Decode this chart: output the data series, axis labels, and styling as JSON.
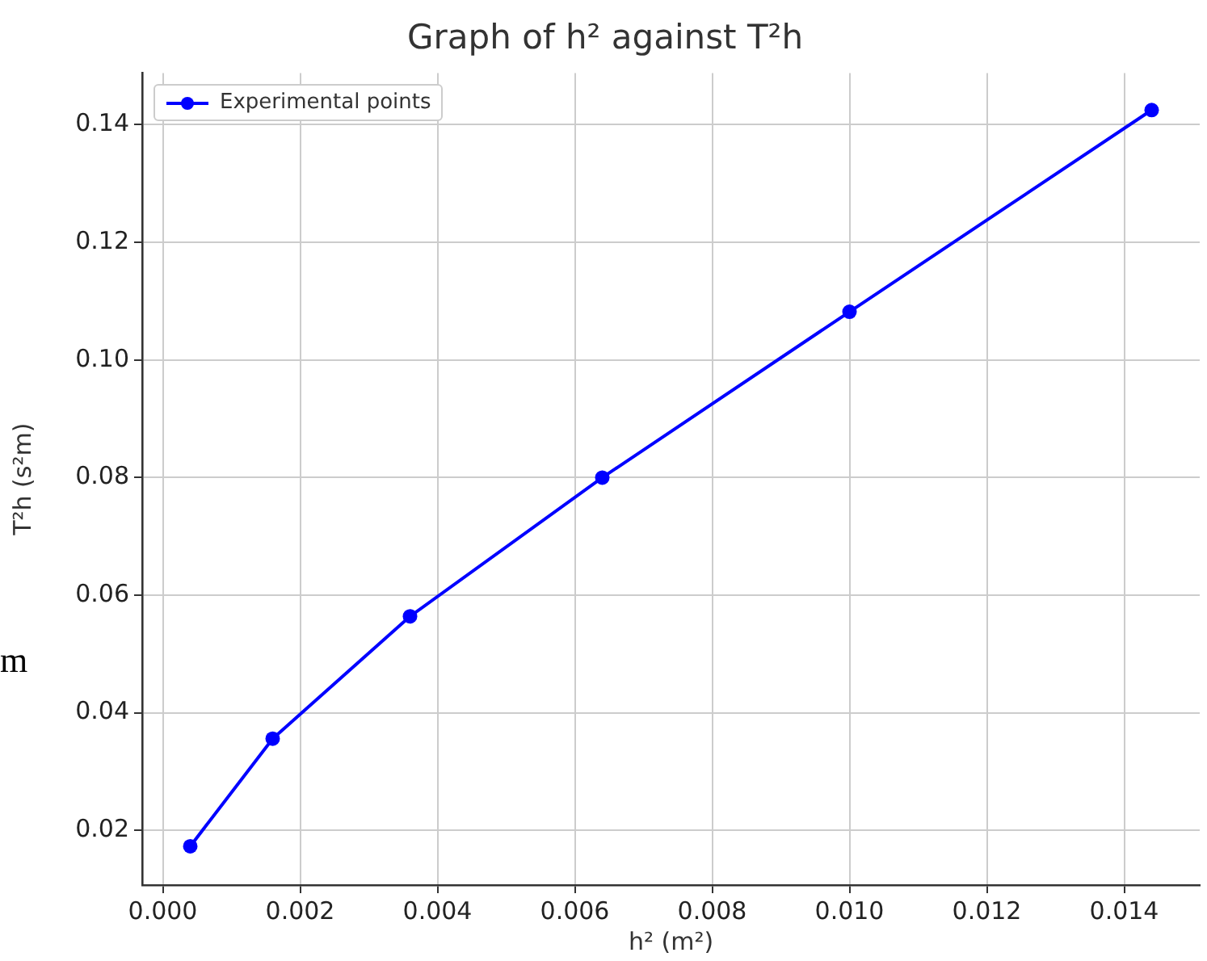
{
  "chart_data": {
    "type": "line",
    "title": "Graph of h² against T²h",
    "xlabel": "h² (m²)",
    "ylabel": "T²h (s²m)",
    "x": [
      0.0004,
      0.0016,
      0.0036,
      0.0064,
      0.01,
      0.0144
    ],
    "series": [
      {
        "name": "Experimental points",
        "color": "#0000ff",
        "values": [
          0.0173,
          0.0356,
          0.0564,
          0.08,
          0.1082,
          0.1425
        ]
      }
    ],
    "xlim": [
      -0.0003,
      0.0151
    ],
    "ylim": [
      0.0107,
      0.1488
    ],
    "xticks": [
      {
        "value": 0,
        "label": "0.000"
      },
      {
        "value": 0.002,
        "label": "0.002"
      },
      {
        "value": 0.004,
        "label": "0.004"
      },
      {
        "value": 0.006,
        "label": "0.006"
      },
      {
        "value": 0.008,
        "label": "0.008"
      },
      {
        "value": 0.01,
        "label": "0.010"
      },
      {
        "value": 0.012,
        "label": "0.012"
      },
      {
        "value": 0.014,
        "label": "0.014"
      }
    ],
    "yticks": [
      {
        "value": 0.02,
        "label": "0.02"
      },
      {
        "value": 0.04,
        "label": "0.04"
      },
      {
        "value": 0.06,
        "label": "0.06"
      },
      {
        "value": 0.08,
        "label": "0.08"
      },
      {
        "value": 0.1,
        "label": "0.10"
      },
      {
        "value": 0.12,
        "label": "0.12"
      },
      {
        "value": 0.14,
        "label": "0.14"
      }
    ],
    "grid": true,
    "legend": "top left",
    "marker": "circle",
    "line_style": "solid",
    "annotations": [
      "m"
    ]
  }
}
